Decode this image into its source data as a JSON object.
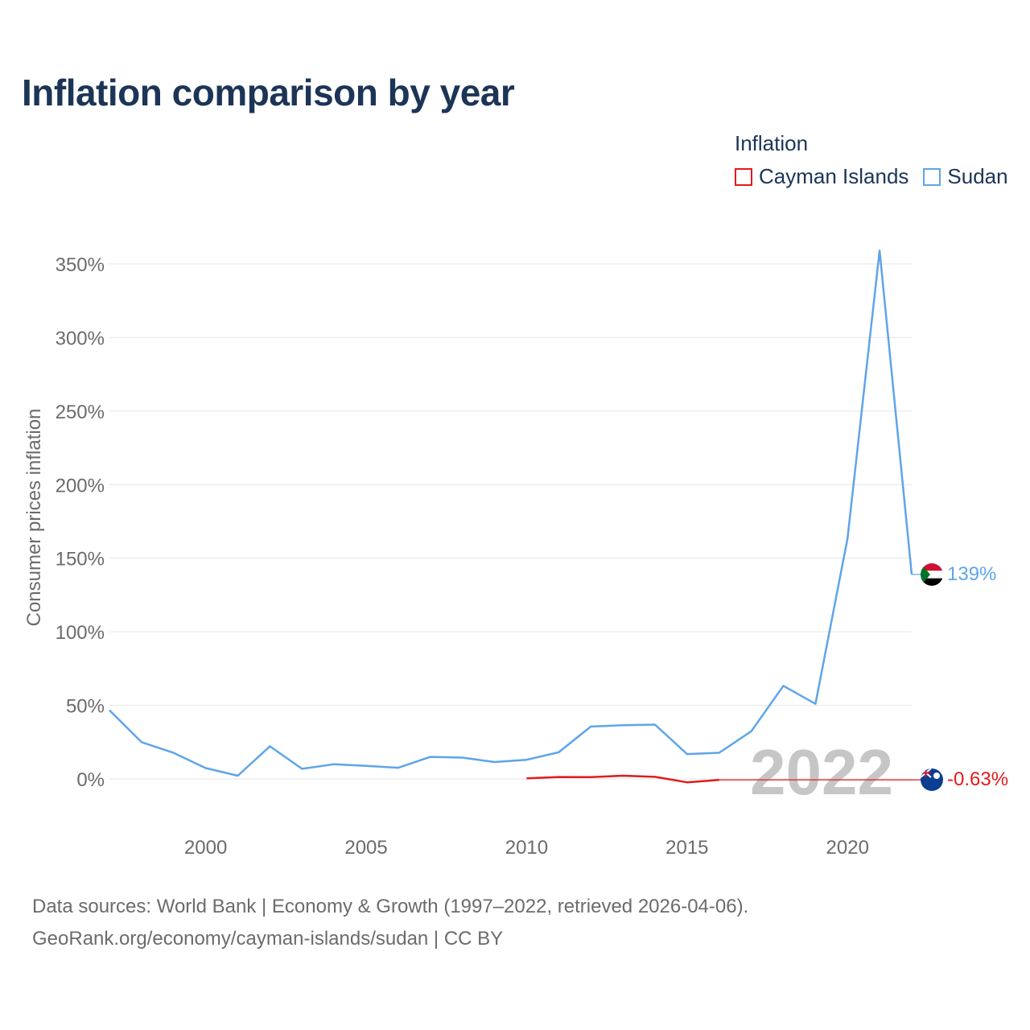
{
  "title": "Inflation comparison by year",
  "legend": {
    "title": "Inflation",
    "items": [
      {
        "label": "Cayman Islands",
        "color": "#e31a1c"
      },
      {
        "label": "Sudan",
        "color": "#5ea5e8"
      }
    ]
  },
  "chart_data": {
    "type": "line",
    "title": "Inflation comparison by year",
    "xlabel": "",
    "ylabel": "Consumer prices inflation",
    "xlim": [
      1997,
      2022
    ],
    "ylim": [
      -20,
      370
    ],
    "yticks": [
      0,
      50,
      100,
      150,
      200,
      250,
      300,
      350
    ],
    "ytick_labels": [
      "0%",
      "50%",
      "100%",
      "150%",
      "200%",
      "250%",
      "300%",
      "350%"
    ],
    "xticks": [
      2000,
      2005,
      2010,
      2015,
      2020
    ],
    "xtick_labels": [
      "2000",
      "2005",
      "2010",
      "2015",
      "2020"
    ],
    "grid": true,
    "year_watermark": "2022",
    "series": [
      {
        "name": "Sudan",
        "color": "#5ea5e8",
        "end_label": "139%",
        "points": [
          [
            1997,
            46.7
          ],
          [
            1998,
            25.0
          ],
          [
            1999,
            17.7
          ],
          [
            2000,
            7.4
          ],
          [
            2001,
            2.2
          ],
          [
            2002,
            22.2
          ],
          [
            2003,
            6.9
          ],
          [
            2004,
            10.0
          ],
          [
            2005,
            8.9
          ],
          [
            2006,
            7.6
          ],
          [
            2007,
            15.0
          ],
          [
            2008,
            14.5
          ],
          [
            2009,
            11.5
          ],
          [
            2010,
            13.0
          ],
          [
            2011,
            18.1
          ],
          [
            2012,
            35.6
          ],
          [
            2013,
            36.5
          ],
          [
            2014,
            36.9
          ],
          [
            2015,
            16.9
          ],
          [
            2016,
            17.8
          ],
          [
            2017,
            32.4
          ],
          [
            2018,
            63.3
          ],
          [
            2019,
            51.0
          ],
          [
            2020,
            163.3
          ],
          [
            2021,
            359.1
          ],
          [
            2022,
            139.0
          ]
        ]
      },
      {
        "name": "Cayman Islands",
        "color": "#e31a1c",
        "end_label": "-0.63%",
        "points": [
          [
            2010,
            0.4
          ],
          [
            2011,
            1.3
          ],
          [
            2012,
            1.2
          ],
          [
            2013,
            2.2
          ],
          [
            2014,
            1.4
          ],
          [
            2015,
            -2.3
          ],
          [
            2016,
            -0.63
          ]
        ],
        "extension_to": 2022
      }
    ]
  },
  "source": {
    "line1": "Data sources: World Bank | Economy & Growth (1997–2022, retrieved 2026-04-06).",
    "line2": "GeoRank.org/economy/cayman-islands/sudan | CC BY"
  }
}
